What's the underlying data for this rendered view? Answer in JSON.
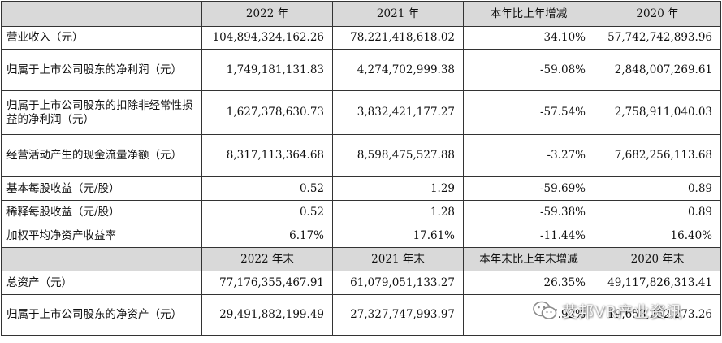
{
  "header1": [
    "2022 年",
    "2021 年",
    "本年比上年增减",
    "2020 年"
  ],
  "rows1": [
    {
      "label": "营业收入（元）",
      "values": [
        "104,894,324,162.26",
        "78,221,418,618.02",
        "34.10%",
        "57,742,742,893.96"
      ]
    },
    {
      "label": "归属于上市公司股东的净利润（元）",
      "values": [
        "1,749,181,131.83",
        "4,274,702,999.38",
        "-59.08%",
        "2,848,007,269.61"
      ]
    },
    {
      "label": "归属于上市公司股东的扣除非经常性损益的净利润（元）",
      "values": [
        "1,627,378,630.73",
        "3,832,421,177.27",
        "-57.54%",
        "2,758,911,040.03"
      ]
    },
    {
      "label": "经营活动产生的现金流量净额（元）",
      "values": [
        "8,317,113,364.68",
        "8,598,475,527.88",
        "-3.27%",
        "7,682,256,113.68"
      ]
    },
    {
      "label": "基本每股收益（元/股）",
      "values": [
        "0.52",
        "1.29",
        "-59.69%",
        "0.89"
      ]
    },
    {
      "label": "稀释每股收益（元/股）",
      "values": [
        "0.52",
        "1.28",
        "-59.38%",
        "0.89"
      ]
    },
    {
      "label": "加权平均净资产收益率",
      "values": [
        "6.17%",
        "17.61%",
        "-11.44%",
        "16.40%"
      ]
    }
  ],
  "header2": [
    "2022 年末",
    "2021 年末",
    "本年末比上年末增减",
    "2020 年末"
  ],
  "rows2": [
    {
      "label": "总资产（元）",
      "values": [
        "77,176,355,467.91",
        "61,079,051,133.27",
        "26.35%",
        "49,117,826,313.41"
      ]
    },
    {
      "label": "归属于上市公司股东的净资产（元）",
      "values": [
        "29,491,882,199.49",
        "27,327,747,993.97",
        "7.92%",
        "19,653,252,273.26"
      ]
    }
  ],
  "watermark": {
    "text": "艾邦VR产业资讯",
    "icon": "wechat-icon"
  }
}
